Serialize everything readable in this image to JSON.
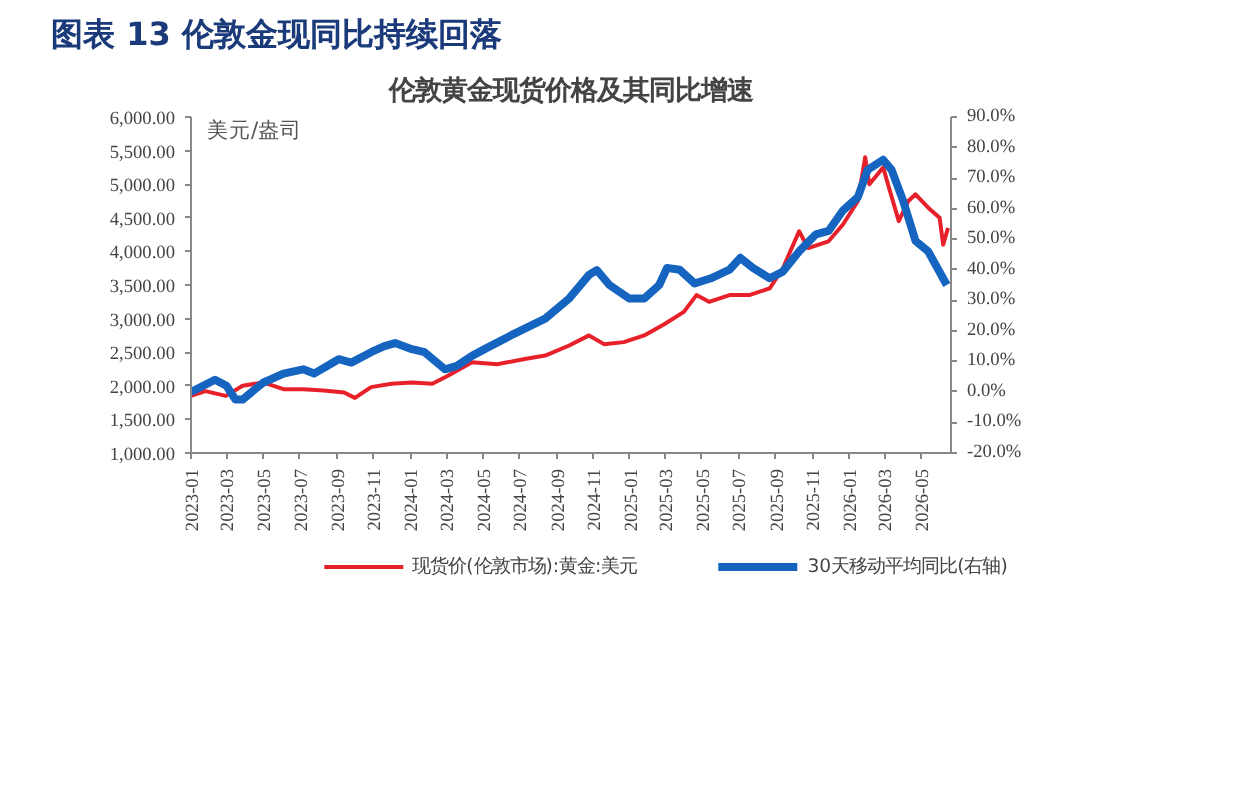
{
  "chart_data": {
    "type": "line",
    "title": "图表 13 伦敦金现同比持续回落",
    "subtitle": "伦敦黄金现货价格及其同比增速",
    "ylabel": "美元/盎司",
    "xlim": [
      "2023-01-01",
      "2026-06-20"
    ],
    "xticks": [
      "2023-01",
      "2023-03",
      "2023-05",
      "2023-07",
      "2023-09",
      "2023-11",
      "2024-01",
      "2024-03",
      "2024-05",
      "2024-07",
      "2024-09",
      "2024-11",
      "2025-01",
      "2025-03",
      "2025-05",
      "2025-07",
      "2025-09",
      "2025-11",
      "2026-01",
      "2026-03",
      "2026-05"
    ],
    "ylim": [
      1000,
      6000
    ],
    "yticks": [
      {
        "value": 1000,
        "label": "1,000.00"
      },
      {
        "value": 1500,
        "label": "1,500.00"
      },
      {
        "value": 2000,
        "label": "2,000.00"
      },
      {
        "value": 2500,
        "label": "2,500.00"
      },
      {
        "value": 3000,
        "label": "3,000.00"
      },
      {
        "value": 3500,
        "label": "3,500.00"
      },
      {
        "value": 4000,
        "label": "4,000.00"
      },
      {
        "value": 4500,
        "label": "4,500.00"
      },
      {
        "value": 5000,
        "label": "5,000.00"
      },
      {
        "value": 5500,
        "label": "5,500.00"
      },
      {
        "value": 6000,
        "label": "6,000.00"
      }
    ],
    "y2lim": [
      -20,
      90
    ],
    "y2ticks": [
      {
        "value": -20,
        "label": "-20.0%"
      },
      {
        "value": -10,
        "label": "-10.0%"
      },
      {
        "value": 0,
        "label": "0.0%"
      },
      {
        "value": 10,
        "label": "10.0%"
      },
      {
        "value": 20,
        "label": "20.0%"
      },
      {
        "value": 30,
        "label": "30.0%"
      },
      {
        "value": 40,
        "label": "40.0%"
      },
      {
        "value": 50,
        "label": "50.0%"
      },
      {
        "value": 60,
        "label": "60.0%"
      },
      {
        "value": 70,
        "label": "70.0%"
      },
      {
        "value": 80,
        "label": "80.0%"
      },
      {
        "value": 90,
        "label": "90.0%"
      }
    ],
    "grid": false,
    "legend": "bottom",
    "series": [
      {
        "name": "现货价(伦敦市场):黄金:美元",
        "color": "#e8202a",
        "x": [
          "2023-01-01",
          "2023-01-25",
          "2023-02-28",
          "2023-03-28",
          "2023-05-01",
          "2023-06-04",
          "2023-07-07",
          "2023-08-10",
          "2023-09-13",
          "2023-10-01",
          "2023-10-28",
          "2023-12-01",
          "2024-01-04",
          "2024-02-07",
          "2024-03-04",
          "2024-04-13",
          "2024-05-25",
          "2024-07-10",
          "2024-08-13",
          "2024-09-22",
          "2024-10-25",
          "2024-11-19",
          "2024-12-22",
          "2025-01-25",
          "2025-02-28",
          "2025-04-01",
          "2025-04-22",
          "2025-05-13",
          "2025-06-16",
          "2025-07-19",
          "2025-08-22",
          "2025-09-13",
          "2025-10-10",
          "2025-10-25",
          "2025-11-28",
          "2025-12-22",
          "2026-01-16",
          "2026-01-28",
          "2026-02-04",
          "2026-02-27",
          "2026-03-07",
          "2026-03-25",
          "2026-04-10",
          "2026-04-22",
          "2026-05-13",
          "2026-06-01",
          "2026-06-07",
          "2026-06-15"
        ],
        "values": [
          1850,
          1920,
          1850,
          2000,
          2050,
          1950,
          1950,
          1930,
          1900,
          1820,
          1980,
          2030,
          2050,
          2030,
          2150,
          2350,
          2320,
          2400,
          2450,
          2600,
          2750,
          2620,
          2650,
          2750,
          2920,
          3100,
          3350,
          3250,
          3350,
          3350,
          3450,
          3750,
          4300,
          4050,
          4150,
          4400,
          4750,
          5400,
          5000,
          5250,
          5000,
          4450,
          4750,
          4850,
          4650,
          4500,
          4100,
          4350
        ]
      },
      {
        "name": "30天移动平均同比(右轴)",
        "color": "#1565c0",
        "axis": "y2",
        "x": [
          "2023-01-01",
          "2023-02-10",
          "2023-03-01",
          "2023-03-16",
          "2023-03-28",
          "2023-05-01",
          "2023-06-04",
          "2023-07-07",
          "2023-07-25",
          "2023-09-04",
          "2023-09-25",
          "2023-10-28",
          "2023-11-19",
          "2023-12-07",
          "2024-01-04",
          "2024-01-25",
          "2024-02-28",
          "2024-03-19",
          "2024-04-13",
          "2024-05-04",
          "2024-06-16",
          "2024-08-13",
          "2024-09-22",
          "2024-10-25",
          "2024-11-07",
          "2024-11-28",
          "2024-12-31",
          "2025-01-25",
          "2025-02-19",
          "2025-03-04",
          "2025-03-25",
          "2025-04-19",
          "2025-05-16",
          "2025-06-16",
          "2025-07-04",
          "2025-07-25",
          "2025-08-22",
          "2025-09-13",
          "2025-10-10",
          "2025-11-07",
          "2025-11-28",
          "2025-12-22",
          "2026-01-16",
          "2026-02-01",
          "2026-02-27",
          "2026-03-13",
          "2026-04-01",
          "2026-04-22",
          "2026-05-13",
          "2026-06-13"
        ],
        "values": [
          0,
          4,
          2,
          -2.5,
          -2.5,
          3,
          6,
          7.4,
          6,
          10.7,
          9.6,
          13,
          15,
          16,
          14,
          13,
          7.4,
          8.5,
          11.8,
          14,
          18.4,
          24,
          30.6,
          38.3,
          39.9,
          35,
          30.6,
          30.6,
          35,
          40.6,
          40,
          35.5,
          37.2,
          40,
          43.9,
          40.6,
          37.2,
          39.4,
          46,
          51.6,
          52.7,
          59.4,
          63.8,
          72.7,
          76,
          72.7,
          62.7,
          49.4,
          46,
          35
        ]
      }
    ]
  }
}
